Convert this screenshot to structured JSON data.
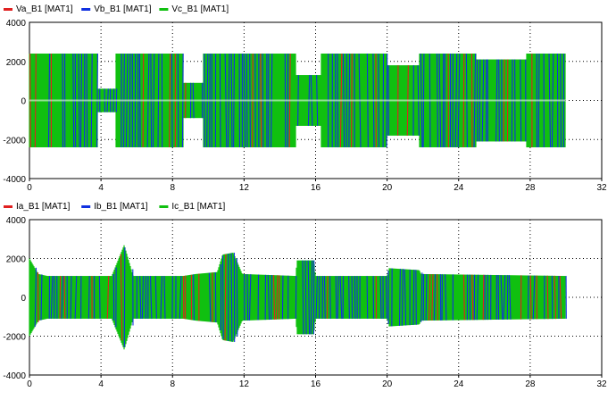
{
  "colors": {
    "phase_a": "#e02020",
    "phase_b": "#1030e0",
    "phase_c": "#10c010",
    "grid": "#000000",
    "axis": "#000000"
  },
  "chart_data": [
    {
      "type": "line",
      "legend": [
        "Va_B1 [MAT1]",
        "Vb_B1 [MAT1]",
        "Vc_B1 [MAT1]"
      ],
      "legend_placement": "top-left",
      "xlim": [
        0,
        32
      ],
      "ylim": [
        -4000,
        4000
      ],
      "xticks": [
        "0",
        "4",
        "8",
        "12",
        "16",
        "20",
        "24",
        "28",
        "32"
      ],
      "yticks": [
        "4000",
        "2000",
        "0",
        "-2000",
        "-4000"
      ],
      "grid": true,
      "series": [
        {
          "name": "Va_B1 [MAT1]",
          "color": "#e02020"
        },
        {
          "name": "Vb_B1 [MAT1]",
          "color": "#1030e0"
        },
        {
          "name": "Vc_B1 [MAT1]",
          "color": "#10c010"
        }
      ],
      "envelope": [
        [
          0,
          2400
        ],
        [
          3.8,
          2400
        ],
        [
          3.8,
          600
        ],
        [
          4.8,
          600
        ],
        [
          4.8,
          2400
        ],
        [
          8.6,
          2400
        ],
        [
          8.6,
          900
        ],
        [
          9.7,
          900
        ],
        [
          9.7,
          2400
        ],
        [
          14.9,
          2400
        ],
        [
          14.9,
          1300
        ],
        [
          16.3,
          1300
        ],
        [
          16.3,
          2400
        ],
        [
          20.0,
          2400
        ],
        [
          20.0,
          1800
        ],
        [
          21.8,
          1800
        ],
        [
          21.8,
          2400
        ],
        [
          25.0,
          2400
        ],
        [
          25.0,
          2100
        ],
        [
          27.8,
          2100
        ],
        [
          27.8,
          2400
        ],
        [
          30.0,
          2400
        ]
      ]
    },
    {
      "type": "line",
      "legend": [
        "Ia_B1 [MAT1]",
        "Ib_B1 [MAT1]",
        "Ic_B1 [MAT1]"
      ],
      "legend_placement": "top-left",
      "xlim": [
        0,
        32
      ],
      "ylim": [
        -4000,
        4000
      ],
      "xticks": [
        "0",
        "4",
        "8",
        "12",
        "16",
        "20",
        "24",
        "28",
        "32"
      ],
      "yticks": [
        "4000",
        "2000",
        "0",
        "-2000",
        "-4000"
      ],
      "grid": true,
      "series": [
        {
          "name": "Ia_B1 [MAT1]",
          "color": "#e02020"
        },
        {
          "name": "Ib_B1 [MAT1]",
          "color": "#1030e0"
        },
        {
          "name": "Ic_B1 [MAT1]",
          "color": "#10c010"
        }
      ],
      "envelope": [
        [
          0,
          2000
        ],
        [
          0.5,
          1200
        ],
        [
          1.0,
          1100
        ],
        [
          4.6,
          1100
        ],
        [
          5.3,
          2700
        ],
        [
          5.8,
          1100
        ],
        [
          8.6,
          1100
        ],
        [
          9.3,
          1200
        ],
        [
          10.5,
          1300
        ],
        [
          10.8,
          2200
        ],
        [
          11.4,
          2300
        ],
        [
          11.9,
          1200
        ],
        [
          14.9,
          1100
        ],
        [
          14.95,
          1900
        ],
        [
          15.9,
          1900
        ],
        [
          16.0,
          1100
        ],
        [
          20.0,
          1100
        ],
        [
          20.1,
          1500
        ],
        [
          21.8,
          1400
        ],
        [
          21.9,
          1200
        ],
        [
          30.0,
          1100
        ]
      ]
    }
  ]
}
